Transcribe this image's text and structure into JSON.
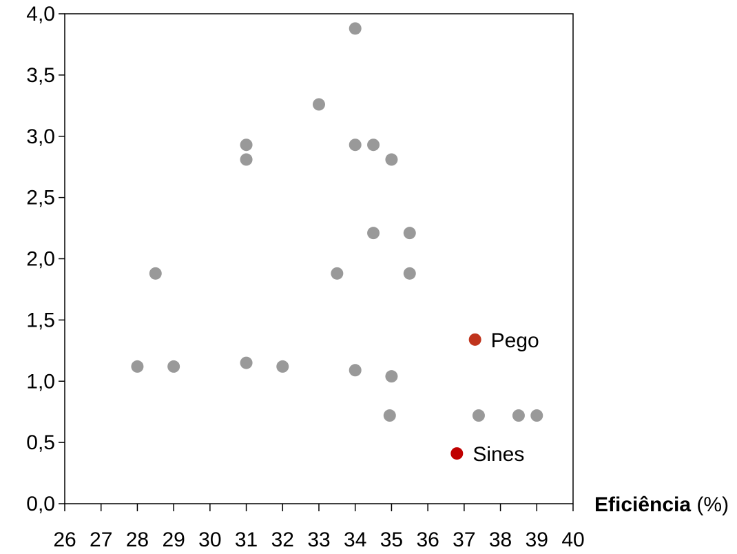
{
  "chart_data": {
    "type": "scatter",
    "title": "",
    "xlabel": "Eficiência",
    "xlabel_unit": "(%)",
    "ylabel": "",
    "xlim": [
      26,
      40
    ],
    "ylim": [
      0,
      4
    ],
    "x_ticks": [
      "26",
      "27",
      "28",
      "29",
      "30",
      "31",
      "32",
      "33",
      "34",
      "35",
      "36",
      "37",
      "38",
      "39",
      "40"
    ],
    "y_ticks": [
      "0,0",
      "0,5",
      "1,0",
      "1,5",
      "2,0",
      "2,5",
      "3,0",
      "3,5",
      "4,0"
    ],
    "grid": false,
    "legend": "none",
    "series": [
      {
        "color": "#999999",
        "points": [
          {
            "x": 34.0,
            "y": 3.88
          },
          {
            "x": 33.0,
            "y": 3.26
          },
          {
            "x": 31.0,
            "y": 2.93
          },
          {
            "x": 34.0,
            "y": 2.93
          },
          {
            "x": 34.5,
            "y": 2.93
          },
          {
            "x": 31.0,
            "y": 2.81
          },
          {
            "x": 35.0,
            "y": 2.81
          },
          {
            "x": 34.5,
            "y": 2.21
          },
          {
            "x": 35.5,
            "y": 2.21
          },
          {
            "x": 28.5,
            "y": 1.88
          },
          {
            "x": 33.5,
            "y": 1.88
          },
          {
            "x": 35.5,
            "y": 1.88
          },
          {
            "x": 28.0,
            "y": 1.12
          },
          {
            "x": 29.0,
            "y": 1.12
          },
          {
            "x": 31.0,
            "y": 1.15
          },
          {
            "x": 32.0,
            "y": 1.12
          },
          {
            "x": 34.0,
            "y": 1.09
          },
          {
            "x": 35.0,
            "y": 1.04
          },
          {
            "x": 34.95,
            "y": 0.72
          },
          {
            "x": 37.4,
            "y": 0.72
          },
          {
            "x": 38.5,
            "y": 0.72
          },
          {
            "x": 39.0,
            "y": 0.72
          }
        ]
      }
    ],
    "highlighted_points": [
      {
        "label": "Pego",
        "x": 37.3,
        "y": 1.34,
        "color": "#c0341d"
      },
      {
        "label": "Sines",
        "x": 36.8,
        "y": 0.41,
        "color": "#c00000"
      }
    ]
  }
}
